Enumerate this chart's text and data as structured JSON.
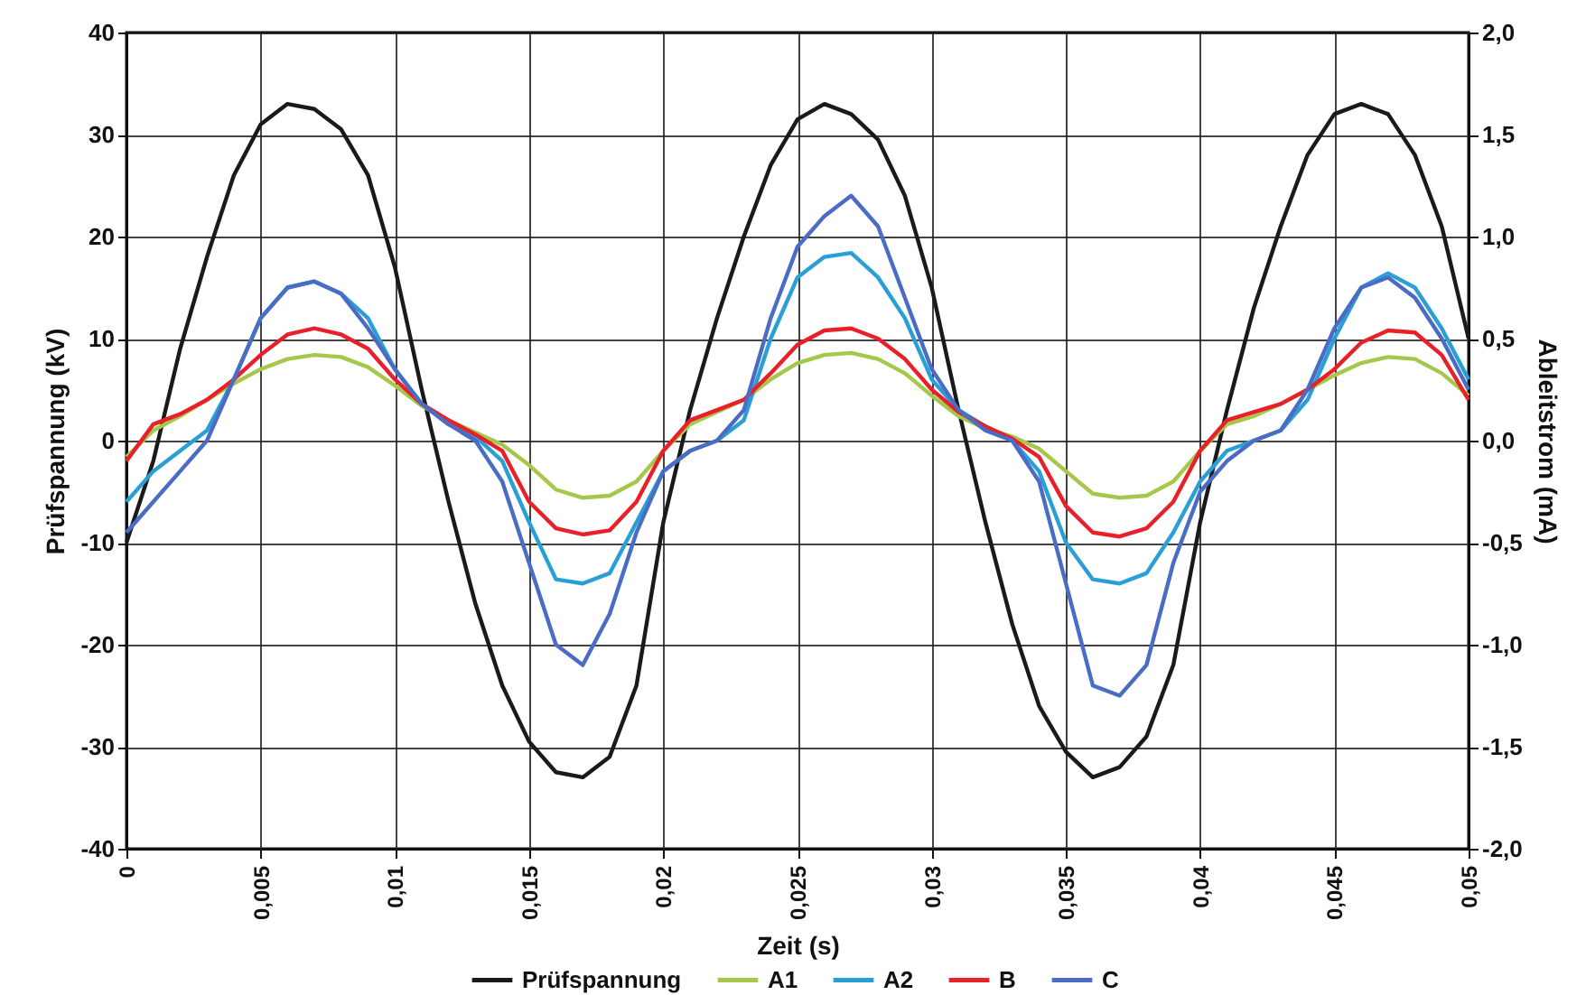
{
  "chart_data": {
    "type": "line",
    "xlabel": "Zeit (s)",
    "ylabel": "Prüfspannung (kV)",
    "y2label": "Ableitstrom (mA)",
    "x": [
      0,
      0.001,
      0.002,
      0.003,
      0.004,
      0.005,
      0.006,
      0.007,
      0.008,
      0.009,
      0.01,
      0.011,
      0.012,
      0.013,
      0.014,
      0.015,
      0.016,
      0.017,
      0.018,
      0.019,
      0.02,
      0.021,
      0.022,
      0.023,
      0.024,
      0.025,
      0.026,
      0.027,
      0.028,
      0.029,
      0.03,
      0.031,
      0.032,
      0.033,
      0.034,
      0.035,
      0.036,
      0.037,
      0.038,
      0.039,
      0.04,
      0.041,
      0.042,
      0.043,
      0.044,
      0.045,
      0.046,
      0.047,
      0.048,
      0.049,
      0.05
    ],
    "series": [
      {
        "name": "Prüfspannung",
        "color": "#1a1a1a",
        "values": [
          -10,
          -2,
          9,
          18,
          26,
          31,
          33,
          32.5,
          30.5,
          26,
          17,
          5,
          -6,
          -16,
          -24,
          -29.5,
          -32.5,
          -33,
          -31,
          -24,
          -8,
          3,
          12,
          20,
          27,
          31.5,
          33,
          32,
          29.5,
          24,
          15,
          3,
          -8,
          -18,
          -26,
          -30.5,
          -33,
          -32,
          -29,
          -22,
          -8,
          3,
          13,
          21,
          28,
          32,
          33,
          32,
          28,
          21,
          10
        ]
      },
      {
        "name": "A1",
        "color": "#a6c84a",
        "axis": "y2",
        "values": [
          -0.08,
          0.05,
          0.12,
          0.2,
          0.28,
          0.35,
          0.4,
          0.42,
          0.41,
          0.36,
          0.27,
          0.17,
          0.1,
          0.04,
          -0.02,
          -0.12,
          -0.24,
          -0.28,
          -0.27,
          -0.2,
          -0.05,
          0.08,
          0.14,
          0.2,
          0.3,
          0.38,
          0.42,
          0.43,
          0.4,
          0.33,
          0.22,
          0.12,
          0.06,
          0.02,
          -0.04,
          -0.15,
          -0.26,
          -0.28,
          -0.27,
          -0.2,
          -0.05,
          0.08,
          0.12,
          0.18,
          0.25,
          0.32,
          0.38,
          0.41,
          0.4,
          0.33,
          0.22
        ]
      },
      {
        "name": "A2",
        "color": "#2a9fd6",
        "axis": "y2",
        "values": [
          -0.3,
          -0.15,
          -0.05,
          0.05,
          0.3,
          0.6,
          0.75,
          0.78,
          0.72,
          0.6,
          0.35,
          0.18,
          0.08,
          0.02,
          -0.1,
          -0.4,
          -0.68,
          -0.7,
          -0.65,
          -0.4,
          -0.15,
          -0.05,
          0,
          0.1,
          0.5,
          0.8,
          0.9,
          0.92,
          0.8,
          0.6,
          0.3,
          0.15,
          0.07,
          0,
          -0.15,
          -0.5,
          -0.68,
          -0.7,
          -0.65,
          -0.45,
          -0.2,
          -0.05,
          0,
          0.05,
          0.2,
          0.5,
          0.75,
          0.82,
          0.75,
          0.55,
          0.3
        ]
      },
      {
        "name": "B",
        "color": "#e8202a",
        "axis": "y2",
        "values": [
          -0.1,
          0.08,
          0.13,
          0.2,
          0.3,
          0.42,
          0.52,
          0.55,
          0.52,
          0.45,
          0.3,
          0.18,
          0.1,
          0.03,
          -0.05,
          -0.3,
          -0.43,
          -0.46,
          -0.44,
          -0.3,
          -0.05,
          0.1,
          0.15,
          0.2,
          0.33,
          0.47,
          0.54,
          0.55,
          0.5,
          0.4,
          0.25,
          0.14,
          0.07,
          0.01,
          -0.08,
          -0.32,
          -0.45,
          -0.47,
          -0.43,
          -0.3,
          -0.05,
          0.1,
          0.14,
          0.18,
          0.25,
          0.35,
          0.48,
          0.54,
          0.53,
          0.42,
          0.2
        ]
      },
      {
        "name": "C",
        "color": "#4a6cc4",
        "axis": "y2",
        "values": [
          -0.45,
          -0.3,
          -0.15,
          0,
          0.3,
          0.6,
          0.75,
          0.78,
          0.72,
          0.55,
          0.35,
          0.18,
          0.08,
          0,
          -0.2,
          -0.6,
          -1,
          -1.1,
          -0.85,
          -0.45,
          -0.15,
          -0.05,
          0,
          0.15,
          0.6,
          0.95,
          1.1,
          1.2,
          1.05,
          0.7,
          0.35,
          0.15,
          0.05,
          0,
          -0.2,
          -0.7,
          -1.2,
          -1.25,
          -1.1,
          -0.6,
          -0.25,
          -0.1,
          0,
          0.05,
          0.25,
          0.55,
          0.75,
          0.8,
          0.7,
          0.5,
          0.25
        ]
      }
    ],
    "xlim": [
      0,
      0.05
    ],
    "xticks": [
      {
        "value": 0,
        "label": "0"
      },
      {
        "value": 0.005,
        "label": "0,005"
      },
      {
        "value": 0.01,
        "label": "0,01"
      },
      {
        "value": 0.015,
        "label": "0,015"
      },
      {
        "value": 0.02,
        "label": "0,02"
      },
      {
        "value": 0.025,
        "label": "0,025"
      },
      {
        "value": 0.03,
        "label": "0,03"
      },
      {
        "value": 0.035,
        "label": "0,035"
      },
      {
        "value": 0.04,
        "label": "0,04"
      },
      {
        "value": 0.045,
        "label": "0,045"
      },
      {
        "value": 0.05,
        "label": "0,05"
      }
    ],
    "ylim": [
      -40,
      40
    ],
    "yticks": [
      -40,
      -30,
      -20,
      -10,
      0,
      10,
      20,
      30,
      40
    ],
    "y2lim": [
      -2,
      2
    ],
    "y2ticks": [
      {
        "value": -2,
        "label": "-2,0"
      },
      {
        "value": -1.5,
        "label": "-1,5"
      },
      {
        "value": -1,
        "label": "-1,0"
      },
      {
        "value": -0.5,
        "label": "-0,5"
      },
      {
        "value": 0,
        "label": "0,0"
      },
      {
        "value": 0.5,
        "label": "0,5"
      },
      {
        "value": 1,
        "label": "1,0"
      },
      {
        "value": 1.5,
        "label": "1,5"
      },
      {
        "value": 2,
        "label": "2,0"
      }
    ],
    "grid": true,
    "legend": "bottom",
    "line_style": "solid",
    "marker": "none"
  }
}
